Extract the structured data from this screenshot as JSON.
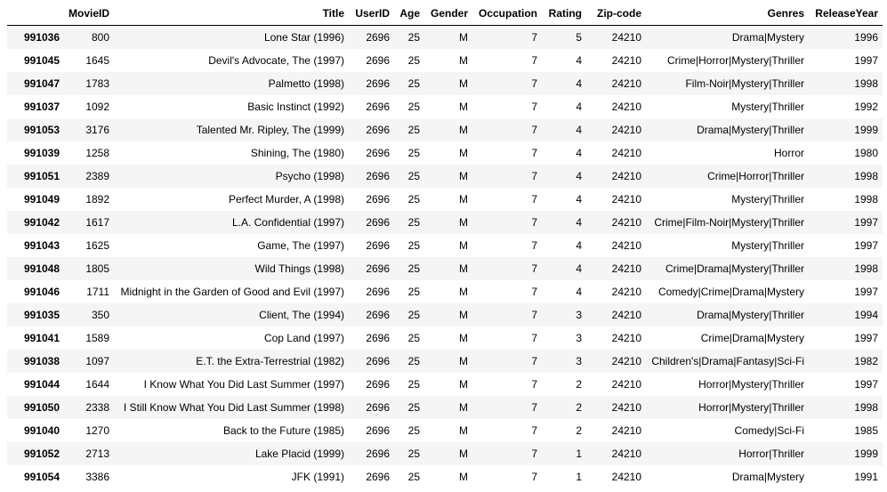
{
  "table": {
    "index_header": "",
    "columns": [
      "MovieID",
      "Title",
      "UserID",
      "Age",
      "Gender",
      "Occupation",
      "Rating",
      "Zip-code",
      "Genres",
      "ReleaseYear"
    ],
    "rows": [
      {
        "index": "991036",
        "cells": [
          "800",
          "Lone Star (1996)",
          "2696",
          "25",
          "M",
          "7",
          "5",
          "24210",
          "Drama|Mystery",
          "1996"
        ]
      },
      {
        "index": "991045",
        "cells": [
          "1645",
          "Devil's Advocate, The (1997)",
          "2696",
          "25",
          "M",
          "7",
          "4",
          "24210",
          "Crime|Horror|Mystery|Thriller",
          "1997"
        ]
      },
      {
        "index": "991047",
        "cells": [
          "1783",
          "Palmetto (1998)",
          "2696",
          "25",
          "M",
          "7",
          "4",
          "24210",
          "Film-Noir|Mystery|Thriller",
          "1998"
        ]
      },
      {
        "index": "991037",
        "cells": [
          "1092",
          "Basic Instinct (1992)",
          "2696",
          "25",
          "M",
          "7",
          "4",
          "24210",
          "Mystery|Thriller",
          "1992"
        ]
      },
      {
        "index": "991053",
        "cells": [
          "3176",
          "Talented Mr. Ripley, The (1999)",
          "2696",
          "25",
          "M",
          "7",
          "4",
          "24210",
          "Drama|Mystery|Thriller",
          "1999"
        ]
      },
      {
        "index": "991039",
        "cells": [
          "1258",
          "Shining, The (1980)",
          "2696",
          "25",
          "M",
          "7",
          "4",
          "24210",
          "Horror",
          "1980"
        ]
      },
      {
        "index": "991051",
        "cells": [
          "2389",
          "Psycho (1998)",
          "2696",
          "25",
          "M",
          "7",
          "4",
          "24210",
          "Crime|Horror|Thriller",
          "1998"
        ]
      },
      {
        "index": "991049",
        "cells": [
          "1892",
          "Perfect Murder, A (1998)",
          "2696",
          "25",
          "M",
          "7",
          "4",
          "24210",
          "Mystery|Thriller",
          "1998"
        ]
      },
      {
        "index": "991042",
        "cells": [
          "1617",
          "L.A. Confidential (1997)",
          "2696",
          "25",
          "M",
          "7",
          "4",
          "24210",
          "Crime|Film-Noir|Mystery|Thriller",
          "1997"
        ]
      },
      {
        "index": "991043",
        "cells": [
          "1625",
          "Game, The (1997)",
          "2696",
          "25",
          "M",
          "7",
          "4",
          "24210",
          "Mystery|Thriller",
          "1997"
        ]
      },
      {
        "index": "991048",
        "cells": [
          "1805",
          "Wild Things (1998)",
          "2696",
          "25",
          "M",
          "7",
          "4",
          "24210",
          "Crime|Drama|Mystery|Thriller",
          "1998"
        ]
      },
      {
        "index": "991046",
        "cells": [
          "1711",
          "Midnight in the Garden of Good and Evil (1997)",
          "2696",
          "25",
          "M",
          "7",
          "4",
          "24210",
          "Comedy|Crime|Drama|Mystery",
          "1997"
        ]
      },
      {
        "index": "991035",
        "cells": [
          "350",
          "Client, The (1994)",
          "2696",
          "25",
          "M",
          "7",
          "3",
          "24210",
          "Drama|Mystery|Thriller",
          "1994"
        ]
      },
      {
        "index": "991041",
        "cells": [
          "1589",
          "Cop Land (1997)",
          "2696",
          "25",
          "M",
          "7",
          "3",
          "24210",
          "Crime|Drama|Mystery",
          "1997"
        ]
      },
      {
        "index": "991038",
        "cells": [
          "1097",
          "E.T. the Extra-Terrestrial (1982)",
          "2696",
          "25",
          "M",
          "7",
          "3",
          "24210",
          "Children's|Drama|Fantasy|Sci-Fi",
          "1982"
        ]
      },
      {
        "index": "991044",
        "cells": [
          "1644",
          "I Know What You Did Last Summer (1997)",
          "2696",
          "25",
          "M",
          "7",
          "2",
          "24210",
          "Horror|Mystery|Thriller",
          "1997"
        ]
      },
      {
        "index": "991050",
        "cells": [
          "2338",
          "I Still Know What You Did Last Summer (1998)",
          "2696",
          "25",
          "M",
          "7",
          "2",
          "24210",
          "Horror|Mystery|Thriller",
          "1998"
        ]
      },
      {
        "index": "991040",
        "cells": [
          "1270",
          "Back to the Future (1985)",
          "2696",
          "25",
          "M",
          "7",
          "2",
          "24210",
          "Comedy|Sci-Fi",
          "1985"
        ]
      },
      {
        "index": "991052",
        "cells": [
          "2713",
          "Lake Placid (1999)",
          "2696",
          "25",
          "M",
          "7",
          "1",
          "24210",
          "Horror|Thriller",
          "1999"
        ]
      },
      {
        "index": "991054",
        "cells": [
          "3386",
          "JFK (1991)",
          "2696",
          "25",
          "M",
          "7",
          "1",
          "24210",
          "Drama|Mystery",
          "1991"
        ]
      }
    ]
  }
}
